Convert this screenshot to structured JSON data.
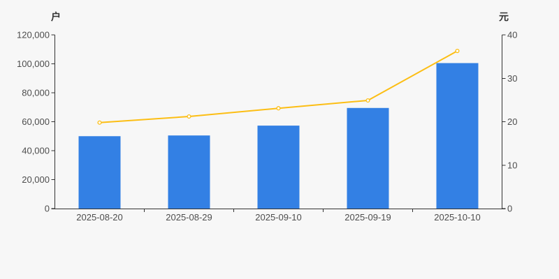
{
  "chart_data": {
    "type": "bar+line",
    "categories": [
      "2025-08-20",
      "2025-08-29",
      "2025-09-10",
      "2025-09-19",
      "2025-10-10"
    ],
    "series": [
      {
        "name": "holders-bar-series",
        "type": "bar",
        "yaxis": "left",
        "values": [
          50000,
          50500,
          57300,
          69500,
          100500
        ]
      },
      {
        "name": "price-line-series",
        "type": "line",
        "yaxis": "right",
        "values": [
          19.8,
          21.2,
          23.1,
          24.9,
          36.3
        ]
      }
    ],
    "left_axis": {
      "unit": "户",
      "min": 0,
      "max": 120000,
      "tick_step": 20000,
      "tick_labels": [
        "0",
        "20,000",
        "40,000",
        "60,000",
        "80,000",
        "100,000",
        "120,000"
      ]
    },
    "right_axis": {
      "unit": "元",
      "min": 0,
      "max": 40,
      "tick_step": 10,
      "tick_labels": [
        "0",
        "10",
        "20",
        "30",
        "40"
      ]
    },
    "grid": false,
    "legend": false,
    "title": ""
  },
  "colors": {
    "background": "#f7f7f7",
    "axis": "#333333",
    "tick_text": "#4d4d4d",
    "unit_text": "#333333",
    "bar": "#3380e4",
    "line": "#fcbe14",
    "marker_fill": "#ffffff"
  },
  "icons": {}
}
